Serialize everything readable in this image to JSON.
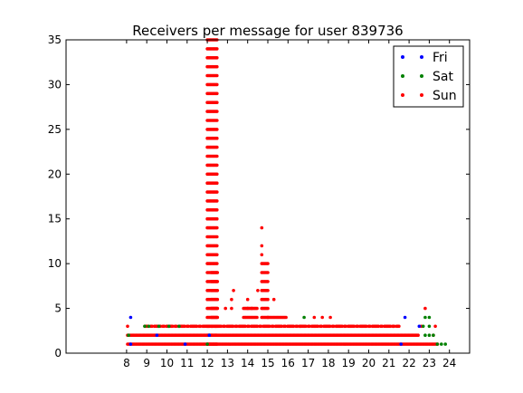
{
  "chart_data": {
    "type": "scatter",
    "title": "Receivers per message for user 839736",
    "xlabel": "",
    "ylabel": "",
    "xlim": [
      5,
      25
    ],
    "ylim": [
      0,
      35
    ],
    "xticks": [
      8,
      9,
      10,
      11,
      12,
      13,
      14,
      15,
      16,
      17,
      18,
      19,
      20,
      21,
      22,
      23,
      24
    ],
    "yticks": [
      0,
      5,
      10,
      15,
      20,
      25,
      30,
      35
    ],
    "legend": {
      "position": "top-right"
    },
    "grid": false,
    "series": [
      {
        "name": "Fri",
        "color": "#0000ff",
        "points": [
          [
            8.2,
            4
          ],
          [
            8.2,
            1
          ],
          [
            9.5,
            2
          ],
          [
            10.9,
            1
          ],
          [
            12.1,
            2
          ],
          [
            21.8,
            4
          ],
          [
            22.5,
            3
          ],
          [
            21.6,
            1
          ]
        ]
      },
      {
        "name": "Sat",
        "color": "#008000",
        "points": [
          [
            8.1,
            2
          ],
          [
            8.9,
            3
          ],
          [
            9.1,
            3
          ],
          [
            9.6,
            3
          ],
          [
            10.1,
            3
          ],
          [
            10.6,
            3
          ],
          [
            12.0,
            1
          ],
          [
            12.1,
            2
          ],
          [
            16.8,
            4
          ],
          [
            22.8,
            4
          ],
          [
            23.0,
            4
          ],
          [
            22.7,
            3
          ],
          [
            23.0,
            3
          ],
          [
            22.8,
            2
          ],
          [
            23.0,
            2
          ],
          [
            23.2,
            2
          ],
          [
            23.4,
            1
          ],
          [
            23.6,
            1
          ],
          [
            23.8,
            1
          ]
        ]
      },
      {
        "name": "Sun",
        "color": "#ff0000",
        "points": [
          [
            8.05,
            3
          ],
          [
            12.9,
            5
          ],
          [
            13.2,
            5
          ],
          [
            13.3,
            7
          ],
          [
            13.2,
            6
          ],
          [
            14.0,
            6
          ],
          [
            14.0,
            5
          ],
          [
            14.2,
            5
          ],
          [
            14.5,
            7
          ],
          [
            14.7,
            14
          ],
          [
            14.7,
            12
          ],
          [
            14.7,
            11
          ],
          [
            15.3,
            6
          ],
          [
            16.6,
            3
          ],
          [
            17.3,
            4
          ],
          [
            17.7,
            4
          ],
          [
            18.1,
            4
          ],
          [
            21.2,
            3
          ],
          [
            22.6,
            3
          ],
          [
            22.8,
            5
          ],
          [
            23.3,
            3
          ],
          [
            23.2,
            2
          ]
        ],
        "bands": [
          {
            "x": [
              8.05,
              23.45
            ],
            "y": 1
          },
          {
            "x": [
              8.05,
              22.5
            ],
            "y": 2
          },
          {
            "x": [
              8.9,
              21.5
            ],
            "y": 3,
            "density": 0.8
          },
          {
            "x": [
              12.0,
              12.5
            ],
            "y": [
              1,
              35
            ]
          },
          {
            "x": [
              12.2,
              12.5
            ],
            "y": [
              4,
              9
            ]
          },
          {
            "x": [
              13.8,
              14.5
            ],
            "y": [
              4,
              5
            ]
          },
          {
            "x": [
              14.7,
              15.0
            ],
            "y": [
              4,
              10
            ]
          },
          {
            "x": [
              15.0,
              15.9
            ],
            "y": 4
          }
        ]
      }
    ]
  }
}
